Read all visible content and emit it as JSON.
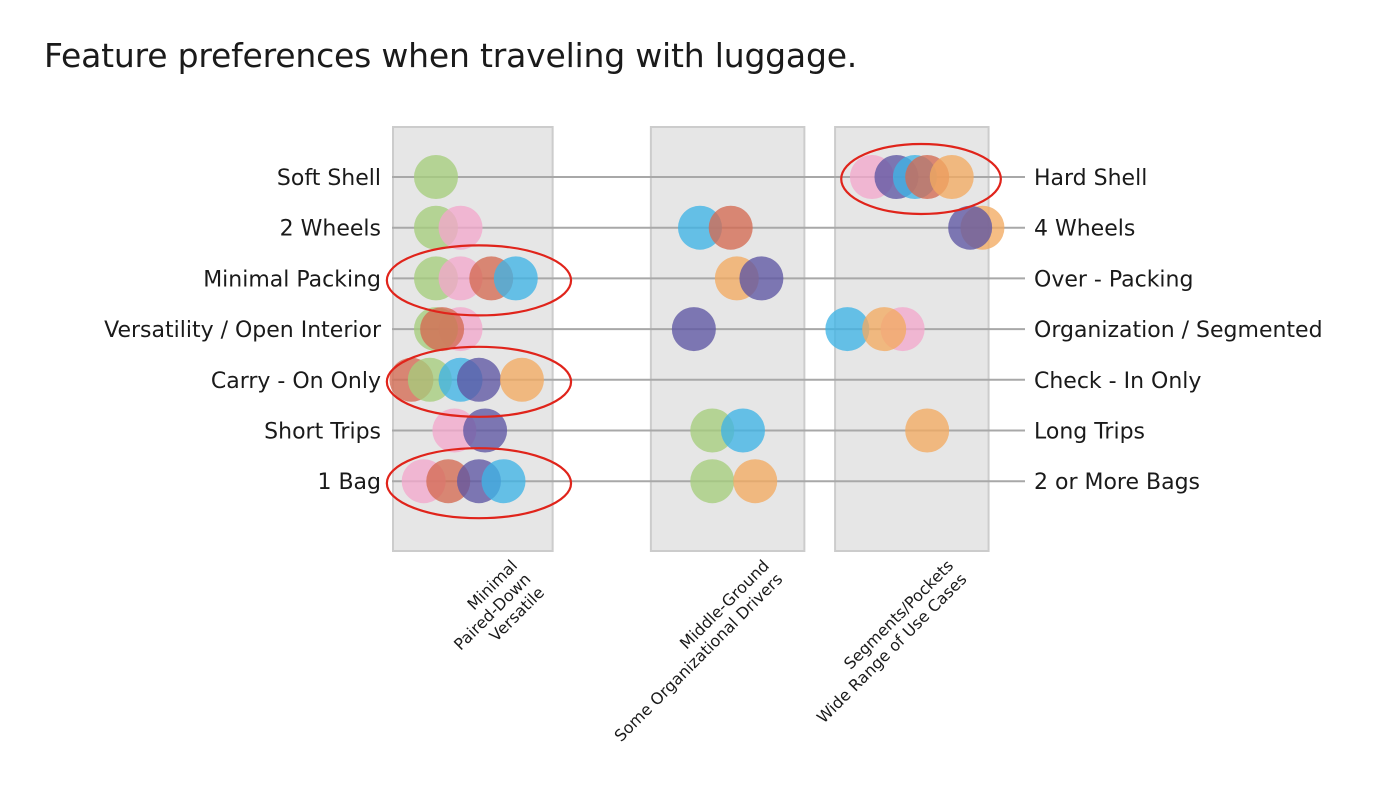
{
  "colors": {
    "green": "#a5cd7c",
    "pink": "#f2a8cc",
    "red": "#d46a52",
    "blue": "#3fb3e6",
    "purple": "#5d56a3",
    "orange": "#f2aa62",
    "band_fill": "#e6e6e6",
    "band_border": "#cccccc",
    "line": "#a8a8a8",
    "highlight": "#e0241b"
  },
  "chart_data": {
    "type": "scatter",
    "title": "Feature preferences when traveling with luggage.",
    "x_axis": {
      "left_end": "minimal",
      "right_end": "segmented",
      "range": [
        0,
        10
      ],
      "bands": [
        {
          "lines": [
            "Minimal",
            "Paired-Down",
            "Versatile"
          ],
          "range": [
            0,
            2.6
          ]
        },
        {
          "lines": [
            "Middle-Ground",
            "Some Organizational Drivers"
          ],
          "range": [
            4.2,
            6.7
          ]
        },
        {
          "lines": [
            "Segments/Pockets",
            "Wide Range of Use Cases"
          ],
          "range": [
            7.2,
            9.7
          ]
        }
      ]
    },
    "rows": [
      {
        "left": "Soft Shell",
        "right": "Hard Shell",
        "highlight": [
          7.3,
          9.9
        ],
        "points": [
          {
            "x": 0.7,
            "c": "green"
          },
          {
            "x": 7.8,
            "c": "pink"
          },
          {
            "x": 8.2,
            "c": "purple"
          },
          {
            "x": 8.5,
            "c": "blue"
          },
          {
            "x": 8.7,
            "c": "red"
          },
          {
            "x": 9.1,
            "c": "orange"
          }
        ]
      },
      {
        "left": "2 Wheels",
        "right": "4 Wheels",
        "points": [
          {
            "x": 0.7,
            "c": "green"
          },
          {
            "x": 1.1,
            "c": "pink"
          },
          {
            "x": 5.0,
            "c": "blue"
          },
          {
            "x": 5.5,
            "c": "red"
          },
          {
            "x": 9.6,
            "c": "orange"
          },
          {
            "x": 9.4,
            "c": "purple"
          }
        ]
      },
      {
        "left": "Minimal Packing",
        "right": "Over - Packing",
        "highlight": [
          -0.1,
          2.9
        ],
        "points": [
          {
            "x": 0.7,
            "c": "green"
          },
          {
            "x": 1.1,
            "c": "pink"
          },
          {
            "x": 1.6,
            "c": "red"
          },
          {
            "x": 2.0,
            "c": "blue"
          },
          {
            "x": 5.6,
            "c": "orange"
          },
          {
            "x": 6.0,
            "c": "purple"
          }
        ]
      },
      {
        "left": "Versatility / Open Interior",
        "right": "Organization / Segmented",
        "points": [
          {
            "x": 1.1,
            "c": "pink"
          },
          {
            "x": 0.7,
            "c": "green"
          },
          {
            "x": 0.8,
            "c": "red"
          },
          {
            "x": 4.9,
            "c": "purple"
          },
          {
            "x": 7.4,
            "c": "blue"
          },
          {
            "x": 8.3,
            "c": "pink"
          },
          {
            "x": 8.0,
            "c": "orange"
          }
        ]
      },
      {
        "left": "Carry - On Only",
        "right": "Check - In Only",
        "highlight": [
          -0.1,
          2.9
        ],
        "points": [
          {
            "x": 0.3,
            "c": "red"
          },
          {
            "x": 0.6,
            "c": "green"
          },
          {
            "x": 1.1,
            "c": "blue"
          },
          {
            "x": 1.4,
            "c": "purple"
          },
          {
            "x": 2.1,
            "c": "orange"
          }
        ]
      },
      {
        "left": "Short Trips",
        "right": "Long Trips",
        "points": [
          {
            "x": 1.0,
            "c": "pink"
          },
          {
            "x": 1.5,
            "c": "purple"
          },
          {
            "x": 5.2,
            "c": "green"
          },
          {
            "x": 5.7,
            "c": "blue"
          },
          {
            "x": 8.7,
            "c": "orange"
          }
        ]
      },
      {
        "left": "1 Bag",
        "right": "2 or More Bags",
        "highlight": [
          -0.1,
          2.9
        ],
        "points": [
          {
            "x": 0.5,
            "c": "pink"
          },
          {
            "x": 0.9,
            "c": "red"
          },
          {
            "x": 1.4,
            "c": "purple"
          },
          {
            "x": 1.8,
            "c": "blue"
          },
          {
            "x": 5.2,
            "c": "green"
          },
          {
            "x": 5.9,
            "c": "orange"
          }
        ]
      }
    ]
  }
}
